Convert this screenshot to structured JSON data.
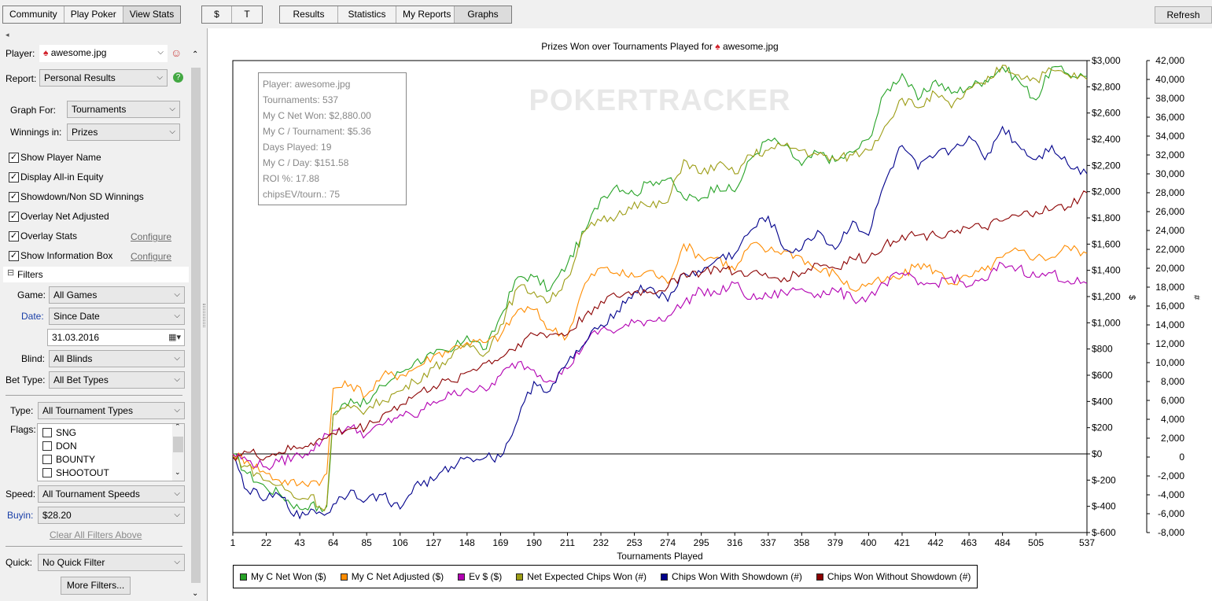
{
  "toolbar": {
    "group1": [
      "Community",
      "Play Poker",
      "View Stats"
    ],
    "group2": [
      "$",
      "T"
    ],
    "group3": [
      "Results",
      "Statistics",
      "My Reports",
      "Graphs"
    ],
    "refresh": "Refresh"
  },
  "sidebar": {
    "player_label": "Player:",
    "player_value": "awesome.jpg",
    "report_label": "Report:",
    "report_value": "Personal Results",
    "graph_for_label": "Graph For:",
    "graph_for_value": "Tournaments",
    "winnings_label": "Winnings in:",
    "winnings_value": "Prizes",
    "checkboxes": [
      {
        "label": "Show Player Name",
        "checked": true
      },
      {
        "label": "Display All-in Equity",
        "checked": true
      },
      {
        "label": "Showdown/Non SD Winnings",
        "checked": true
      },
      {
        "label": "Overlay Net Adjusted",
        "checked": true
      },
      {
        "label": "Overlay Stats",
        "checked": true
      },
      {
        "label": "Show Information Box",
        "checked": true
      }
    ],
    "configure": "Configure",
    "filters_label": "Filters",
    "game_label": "Game:",
    "game_value": "All Games",
    "date_label": "Date:",
    "date_value": "Since Date",
    "date_input": "31.03.2016",
    "blind_label": "Blind:",
    "blind_value": "All Blinds",
    "bettype_label": "Bet Type:",
    "bettype_value": "All Bet Types",
    "type_label": "Type:",
    "type_value": "All Tournament Types",
    "flags_label": "Flags:",
    "flags": [
      "SNG",
      "DON",
      "BOUNTY",
      "SHOOTOUT"
    ],
    "speed_label": "Speed:",
    "speed_value": "All Tournament Speeds",
    "buyin_label": "Buyin:",
    "buyin_value": "$28.20",
    "clear_filters": "Clear All Filters Above",
    "quick_label": "Quick:",
    "quick_value": "No Quick Filter",
    "more_filters": "More Filters..."
  },
  "colors": {
    "net_won": "#27a327",
    "net_adjusted": "#ff8c00",
    "ev": "#b200b2",
    "net_expected_chips": "#9c9c14",
    "chips_sd": "#00008b",
    "chips_nsd": "#8b0000"
  },
  "chart_data": {
    "type": "line",
    "title": "Prizes Won over Tournaments Played for",
    "title_player": "awesome.jpg",
    "watermark": "POKERTRACKER",
    "xlabel": "Tournaments Played",
    "ylabel_left": "$",
    "ylabel_right": "#",
    "x_ticks": [
      1,
      22,
      43,
      64,
      85,
      106,
      127,
      148,
      169,
      190,
      211,
      232,
      253,
      274,
      295,
      316,
      337,
      358,
      379,
      400,
      421,
      442,
      463,
      484,
      505,
      537
    ],
    "x_range": [
      1,
      537
    ],
    "y_ticks_dollars": [
      "$3,000",
      "$2,800",
      "$2,600",
      "$2,400",
      "$2,200",
      "$2,000",
      "$1,800",
      "$1,600",
      "$1,400",
      "$1,200",
      "$1,000",
      "$800",
      "$600",
      "$400",
      "$200",
      "$0",
      "$-200",
      "$-400",
      "$-600"
    ],
    "y_range_dollars": [
      -600,
      3000
    ],
    "y_ticks_chips": [
      "42,000",
      "40,000",
      "38,000",
      "36,000",
      "34,000",
      "32,000",
      "30,000",
      "28,000",
      "26,000",
      "24,000",
      "22,000",
      "20,000",
      "18,000",
      "16,000",
      "14,000",
      "12,000",
      "10,000",
      "8,000",
      "6,000",
      "4,000",
      "2,000",
      "0",
      "-2,000",
      "-4,000",
      "-6,000",
      "-8,000"
    ],
    "y_range_chips": [
      -8000,
      42000
    ],
    "info_box": [
      "Player: awesome.jpg",
      "Tournaments: 537",
      "My C Net Won: $2,880.00",
      "My C / Tournament: $5.36",
      "Days Played: 19",
      "My C / Day: $151.58",
      "ROI %: 17.88",
      "chipsEV/tourn.: 75"
    ],
    "series": [
      {
        "name": "My C Net Won ($)",
        "axis": "dollars",
        "color": "#27a327",
        "x": [
          1,
          10,
          22,
          30,
          43,
          50,
          57,
          60,
          64,
          75,
          85,
          95,
          106,
          115,
          127,
          138,
          148,
          160,
          169,
          180,
          190,
          200,
          211,
          222,
          232,
          242,
          253,
          263,
          274,
          284,
          295,
          305,
          316,
          326,
          337,
          347,
          358,
          368,
          379,
          390,
          400,
          410,
          421,
          431,
          442,
          452,
          463,
          473,
          484,
          494,
          505,
          515,
          525,
          537
        ],
        "y": [
          0,
          -150,
          -260,
          -300,
          -420,
          -380,
          -440,
          -400,
          300,
          420,
          380,
          520,
          620,
          700,
          760,
          780,
          900,
          800,
          1050,
          1350,
          1350,
          1250,
          1450,
          1700,
          1950,
          2050,
          1980,
          2080,
          2100,
          1950,
          1950,
          2050,
          2000,
          2250,
          2400,
          2350,
          2200,
          2300,
          2230,
          2300,
          2400,
          2750,
          2900,
          2700,
          2850,
          2750,
          2800,
          2850,
          2950,
          2850,
          2700,
          2950,
          2900,
          2880
        ]
      },
      {
        "name": "My C Net Adjusted ($)",
        "axis": "dollars",
        "color": "#ff8c00",
        "x": [
          1,
          10,
          22,
          30,
          43,
          50,
          57,
          60,
          64,
          75,
          85,
          95,
          106,
          115,
          127,
          138,
          148,
          160,
          169,
          180,
          190,
          200,
          211,
          222,
          232,
          242,
          253,
          263,
          274,
          284,
          295,
          305,
          316,
          326,
          337,
          347,
          358,
          368,
          379,
          390,
          400,
          410,
          421,
          431,
          442,
          452,
          463,
          473,
          484,
          494,
          505,
          515,
          525,
          537
        ],
        "y": [
          0,
          -50,
          -150,
          -200,
          -230,
          -210,
          -200,
          -150,
          500,
          530,
          450,
          600,
          600,
          650,
          750,
          800,
          850,
          850,
          900,
          1100,
          1100,
          950,
          900,
          1300,
          1420,
          1380,
          1350,
          1400,
          1300,
          1600,
          1500,
          1500,
          1400,
          1600,
          1550,
          1550,
          1500,
          1400,
          1380,
          1250,
          1300,
          1320,
          1350,
          1450,
          1400,
          1300,
          1350,
          1400,
          1500,
          1550,
          1500,
          1500,
          1580,
          1530
        ]
      },
      {
        "name": "Ev $ ($)",
        "axis": "dollars",
        "color": "#b200b2",
        "x": [
          1,
          10,
          22,
          30,
          43,
          50,
          57,
          60,
          64,
          75,
          85,
          95,
          106,
          115,
          127,
          138,
          148,
          160,
          169,
          180,
          190,
          200,
          211,
          222,
          232,
          242,
          253,
          263,
          274,
          284,
          295,
          305,
          316,
          326,
          337,
          347,
          358,
          368,
          379,
          390,
          400,
          410,
          421,
          431,
          442,
          452,
          463,
          473,
          484,
          494,
          505,
          515,
          525,
          537
        ],
        "y": [
          0,
          -50,
          -100,
          -60,
          -10,
          30,
          100,
          150,
          180,
          200,
          150,
          220,
          300,
          280,
          400,
          450,
          500,
          480,
          600,
          700,
          640,
          560,
          650,
          850,
          950,
          940,
          1000,
          1020,
          1050,
          1150,
          1250,
          1220,
          1300,
          1180,
          1200,
          1230,
          1260,
          1220,
          1250,
          1180,
          1200,
          1300,
          1380,
          1290,
          1300,
          1350,
          1280,
          1320,
          1450,
          1420,
          1350,
          1380,
          1320,
          1300
        ]
      },
      {
        "name": "Net Expected Chips Won (#)",
        "axis": "chips",
        "color": "#9c9c14",
        "x": [
          1,
          10,
          22,
          30,
          43,
          50,
          57,
          60,
          64,
          75,
          85,
          95,
          106,
          115,
          127,
          138,
          148,
          160,
          169,
          180,
          190,
          200,
          211,
          222,
          232,
          242,
          253,
          263,
          274,
          284,
          295,
          305,
          316,
          326,
          337,
          347,
          358,
          368,
          379,
          390,
          400,
          410,
          421,
          431,
          442,
          452,
          463,
          473,
          484,
          494,
          505,
          515,
          525,
          537
        ],
        "y": [
          0,
          -1000,
          -2500,
          -3000,
          -4500,
          -4000,
          -5500,
          -5000,
          4500,
          5200,
          5000,
          6000,
          7000,
          8000,
          9500,
          10500,
          12000,
          11000,
          14000,
          18000,
          17500,
          16500,
          19000,
          24000,
          25000,
          25500,
          27000,
          26500,
          27000,
          31500,
          30000,
          31000,
          30000,
          32000,
          32500,
          33000,
          32500,
          32000,
          31500,
          32000,
          32500,
          35000,
          38000,
          37000,
          38500,
          37000,
          39000,
          39500,
          41500,
          40500,
          40000,
          41000,
          40500,
          40000
        ]
      },
      {
        "name": "Chips Won With Showdown (#)",
        "axis": "chips",
        "color": "#00008b",
        "x": [
          1,
          10,
          22,
          30,
          43,
          50,
          57,
          60,
          64,
          75,
          85,
          95,
          106,
          115,
          127,
          138,
          148,
          160,
          169,
          180,
          190,
          200,
          211,
          222,
          232,
          242,
          253,
          263,
          274,
          284,
          295,
          305,
          316,
          326,
          337,
          347,
          358,
          368,
          379,
          390,
          400,
          410,
          421,
          431,
          442,
          452,
          463,
          473,
          484,
          494,
          505,
          515,
          525,
          537
        ],
        "y": [
          0,
          -3500,
          -4500,
          -4000,
          -6500,
          -5500,
          -6000,
          -6000,
          -5000,
          -3500,
          -4500,
          -4000,
          -5500,
          -3000,
          -2500,
          -1000,
          0,
          0,
          0,
          4000,
          8000,
          7000,
          10000,
          12000,
          14000,
          15500,
          17500,
          18000,
          16500,
          19500,
          19500,
          21000,
          21500,
          24000,
          25500,
          22000,
          22000,
          24000,
          22000,
          25000,
          23500,
          29000,
          33000,
          30500,
          32000,
          32500,
          34000,
          31500,
          35000,
          33000,
          31500,
          33000,
          31000,
          30000
        ]
      },
      {
        "name": "Chips Won Without Showdown (#)",
        "axis": "chips",
        "color": "#8b0000",
        "x": [
          1,
          10,
          22,
          30,
          43,
          50,
          57,
          60,
          64,
          75,
          85,
          95,
          106,
          115,
          127,
          138,
          148,
          160,
          169,
          180,
          190,
          200,
          211,
          222,
          232,
          242,
          253,
          263,
          274,
          284,
          295,
          305,
          316,
          326,
          337,
          347,
          358,
          368,
          379,
          390,
          400,
          410,
          421,
          431,
          442,
          452,
          463,
          473,
          484,
          494,
          505,
          515,
          525,
          537
        ],
        "y": [
          0,
          500,
          0,
          500,
          1000,
          1500,
          1800,
          2000,
          2500,
          3000,
          3200,
          4500,
          5500,
          6500,
          7500,
          8000,
          9000,
          10000,
          10500,
          12000,
          13000,
          13000,
          13000,
          15000,
          16500,
          17000,
          17500,
          17500,
          18000,
          19500,
          19500,
          20000,
          19500,
          19500,
          19000,
          19000,
          19500,
          20500,
          20000,
          21000,
          21000,
          22500,
          23500,
          23500,
          23500,
          24000,
          24200,
          24300,
          25000,
          25500,
          26000,
          26200,
          26500,
          28000
        ]
      }
    ]
  }
}
